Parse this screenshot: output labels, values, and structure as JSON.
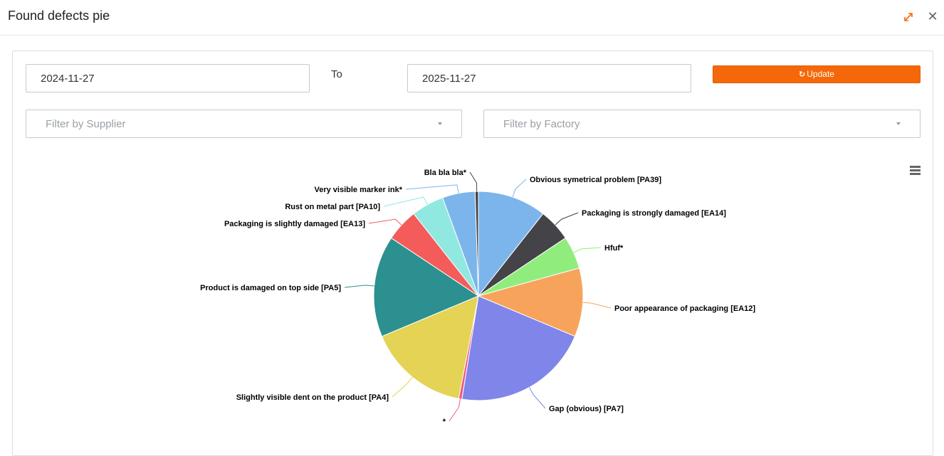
{
  "window": {
    "title": "Found defects pie",
    "expand_icon": "expand-icon",
    "close_icon": "close-icon",
    "close_glyph": "✕"
  },
  "filters": {
    "date_from": "2024-11-27",
    "to_label": "To",
    "date_to": "2025-11-27",
    "update_label": "Update",
    "refresh_icon": "refresh-icon",
    "supplier_placeholder": "Filter by Supplier",
    "factory_placeholder": "Filter by Factory"
  },
  "colors": {
    "accent": "#f5680a"
  },
  "chart_data": {
    "type": "pie",
    "title": "",
    "slices": [
      {
        "label": "Obvious symetrical problem [PA39]",
        "value": 10.5,
        "color": "#7cb5ec"
      },
      {
        "label": "Packaging is strongly damaged [EA14]",
        "value": 5.0,
        "color": "#434348"
      },
      {
        "label": "Hfuf*",
        "value": 5.0,
        "color": "#90ed7d"
      },
      {
        "label": "Poor appearance of packaging [EA12]",
        "value": 10.5,
        "color": "#f7a35c"
      },
      {
        "label": "Gap (obvious) [PA7]",
        "value": 21.0,
        "color": "#8085e9"
      },
      {
        "label": "*",
        "value": 0.5,
        "color": "#f15c80"
      },
      {
        "label": "Slightly visible dent on the product [PA4]",
        "value": 15.5,
        "color": "#e4d354"
      },
      {
        "label": "Product is damaged on top side [PA5]",
        "value": 15.5,
        "color": "#2b908f"
      },
      {
        "label": "Packaging is slightly damaged [EA13]",
        "value": 5.0,
        "color": "#f45b5b"
      },
      {
        "label": "Rust on metal part [PA10]",
        "value": 5.0,
        "color": "#91e8e1"
      },
      {
        "label": "Very visible marker ink*",
        "value": 5.0,
        "color": "#7cb5ec"
      },
      {
        "label": "Bla bla bla*",
        "value": 0.5,
        "color": "#434348"
      }
    ]
  }
}
